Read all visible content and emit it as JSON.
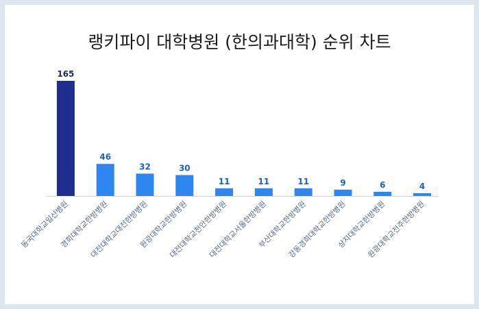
{
  "title": "랭키파이 대학병원 (한의과대학) 순위 차트",
  "colors": {
    "highlight": "#1f2d8f",
    "bar": "#2e86f0",
    "background": "#dde6ec"
  },
  "chart_data": {
    "type": "bar",
    "title": "랭키파이 대학병원 (한의과대학) 순위 차트",
    "categories": [
      "동국대학교일산병원",
      "경희대학교한방병원",
      "대전대학교대전한방병원",
      "원광대학교한방병원",
      "대전대학교천안한방병원",
      "대전대학교서울한방병원",
      "부산대학교한방병원",
      "강동경희대학교한방병원",
      "상지대학교한방병원",
      "원광대학교전주한방병원"
    ],
    "values": [
      165,
      46,
      32,
      30,
      11,
      11,
      11,
      9,
      6,
      4
    ],
    "ylim": [
      0,
      165
    ],
    "grid": false,
    "xlabel": "",
    "ylabel": ""
  }
}
